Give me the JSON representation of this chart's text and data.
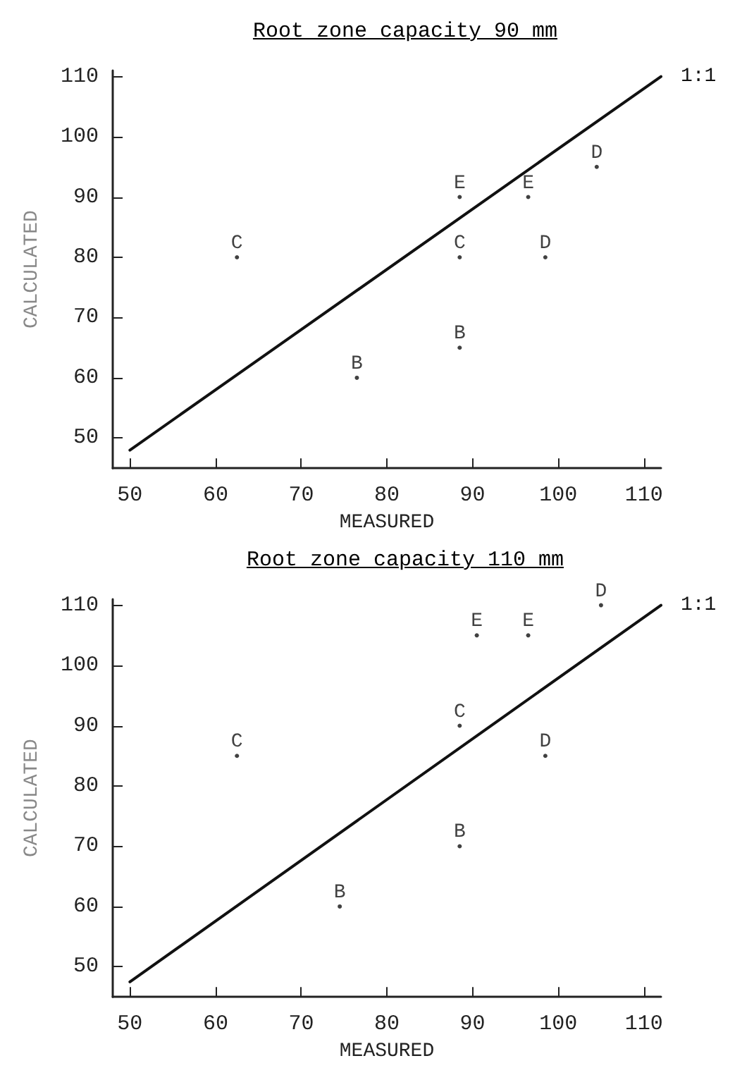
{
  "chart_data": [
    {
      "type": "scatter",
      "title": "Root zone capacity 90 mm",
      "xlabel": "MEASURED",
      "ylabel": "CALCULATED",
      "xlim": [
        48,
        112
      ],
      "ylim": [
        45,
        111
      ],
      "xticks": [
        50,
        60,
        70,
        80,
        90,
        100,
        110
      ],
      "yticks": [
        50,
        60,
        70,
        80,
        90,
        100,
        110
      ],
      "grid": false,
      "legend": false,
      "series": [
        {
          "name": "B",
          "color": "#111111",
          "marker": "circle",
          "x": [
            76.5,
            88.5
          ],
          "values": [
            60,
            65
          ]
        },
        {
          "name": "C",
          "color": "#111111",
          "marker": "circle",
          "x": [
            62.5,
            88.5
          ],
          "values": [
            80,
            80
          ]
        },
        {
          "name": "D",
          "color": "#111111",
          "marker": "circle",
          "x": [
            98.5,
            104.5
          ],
          "values": [
            80,
            95
          ]
        },
        {
          "name": "E",
          "color": "#111111",
          "marker": "circle",
          "x": [
            88.5,
            96.5
          ],
          "values": [
            90,
            90
          ]
        },
        {
          "name": "1:1",
          "type": "line",
          "color": "#111111",
          "marker": "none",
          "line_style": "solid",
          "x": [
            50,
            112
          ],
          "values": [
            48,
            110
          ]
        }
      ]
    },
    {
      "type": "scatter",
      "title": "Root zone capacity 110 mm",
      "xlabel": "MEASURED",
      "ylabel": "CALCULATED",
      "xlim": [
        48,
        112
      ],
      "ylim": [
        45,
        111
      ],
      "xticks": [
        50,
        60,
        70,
        80,
        90,
        100,
        110
      ],
      "yticks": [
        50,
        60,
        70,
        80,
        90,
        100,
        110
      ],
      "grid": false,
      "legend": false,
      "series": [
        {
          "name": "B",
          "color": "#111111",
          "marker": "circle",
          "x": [
            74.5,
            88.5
          ],
          "values": [
            60,
            70
          ]
        },
        {
          "name": "C",
          "color": "#111111",
          "marker": "circle",
          "x": [
            62.5,
            88.5
          ],
          "values": [
            85,
            90
          ]
        },
        {
          "name": "D",
          "color": "#111111",
          "marker": "circle",
          "x": [
            98.5,
            105
          ],
          "values": [
            85,
            110
          ]
        },
        {
          "name": "E",
          "color": "#111111",
          "marker": "circle",
          "x": [
            90.5,
            96.5
          ],
          "values": [
            105,
            105
          ]
        },
        {
          "name": "1:1",
          "type": "line",
          "color": "#111111",
          "marker": "none",
          "line_style": "solid",
          "x": [
            50,
            112
          ],
          "values": [
            47.5,
            110
          ]
        }
      ]
    }
  ]
}
